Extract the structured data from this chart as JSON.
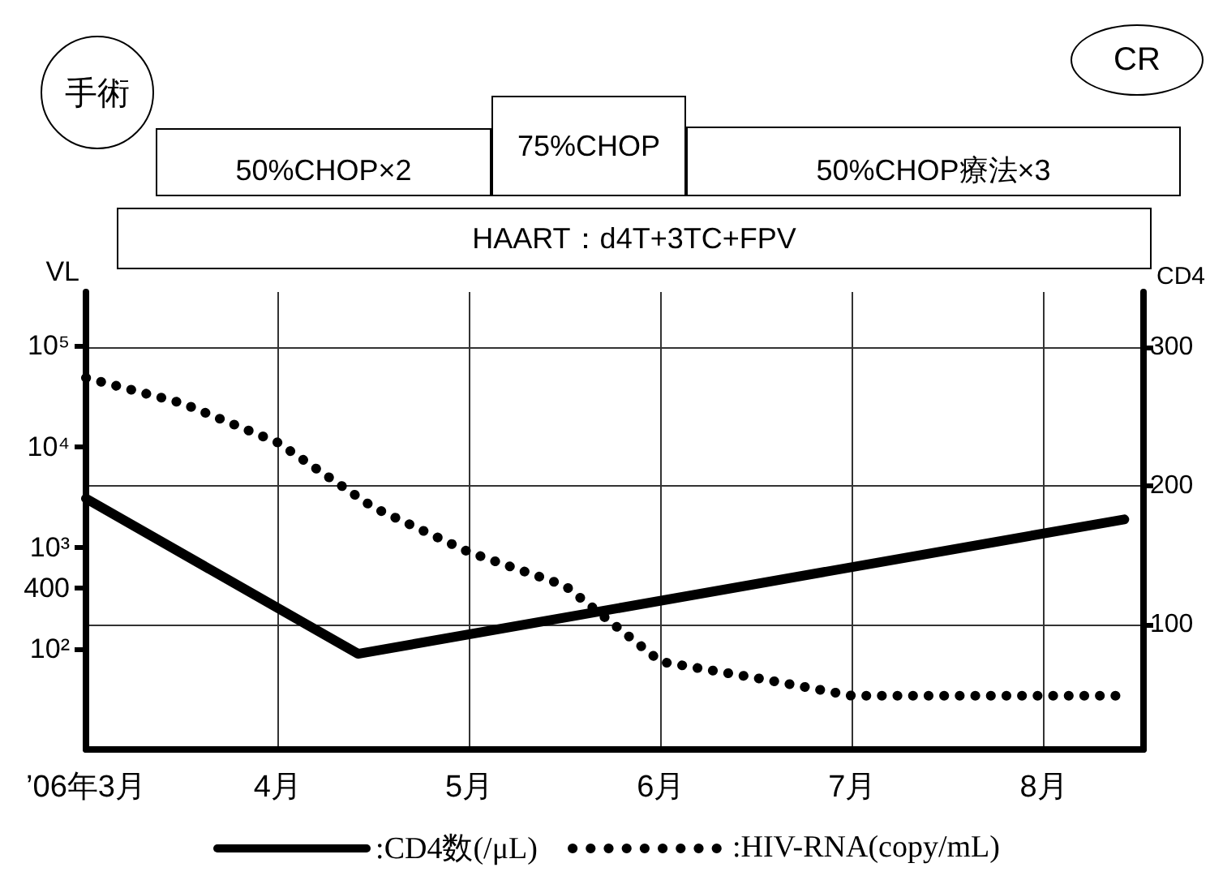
{
  "chart_data": {
    "type": "line",
    "ylabel": "VL",
    "y2label": "CD4",
    "annotations": [
      "手術",
      "50%CHOP×2",
      "75%CHOP",
      "50%CHOP療法×3",
      "HAART：d4T+3TC+FPV",
      "CR"
    ],
    "xlim": [
      3,
      8.52
    ],
    "xticks": [
      {
        "value": 3,
        "label": "’06年3月"
      },
      {
        "value": 4,
        "label": "4月"
      },
      {
        "value": 5,
        "label": "5月"
      },
      {
        "value": 6,
        "label": "6月"
      },
      {
        "value": 7,
        "label": "7月"
      },
      {
        "value": 8,
        "label": "8月"
      }
    ],
    "ylim": [
      10,
      340000
    ],
    "yticks": [
      {
        "value": 100,
        "label": "10²"
      },
      400,
      {
        "value": 1000,
        "label": "10³"
      },
      {
        "value": 10000,
        "label": "10⁴"
      },
      {
        "value": 100000,
        "label": "10⁵"
      }
    ],
    "y2lim": [
      10,
      340
    ],
    "y2ticks": [
      100,
      200,
      300
    ],
    "log": "y",
    "grid": true,
    "legend": "bottom",
    "series": [
      {
        "name": ":CD4数(/μL)",
        "color": "#000000",
        "axis": "y2",
        "line_style": "solid",
        "x": [
          3,
          4.42,
          8.42
        ],
        "values": [
          191,
          79,
          176
        ]
      },
      {
        "name": ":HIV-RNA(copy/mL)",
        "color": "#000000",
        "axis": "y",
        "line_style": "dotted",
        "x": [
          3,
          3.5,
          4,
          4.5,
          5,
          5.5,
          6,
          6.5,
          7,
          7.5,
          8,
          8.42
        ],
        "values": [
          48000,
          27000,
          11000,
          2500,
          900,
          420,
          74,
          51,
          34,
          34,
          34,
          34
        ]
      }
    ]
  }
}
